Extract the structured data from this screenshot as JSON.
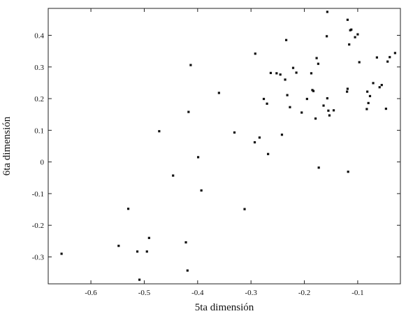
{
  "chart_data": {
    "type": "scatter",
    "title": "",
    "xlabel": "5ta dimensión",
    "ylabel": "6ta dimensión",
    "xlim": [
      -0.68,
      -0.02
    ],
    "ylim": [
      -0.385,
      0.485
    ],
    "xticks": [
      -0.6,
      -0.5,
      -0.4,
      -0.3,
      -0.2,
      -0.1
    ],
    "xtick_labels": [
      "-0.6",
      "-0.5",
      "-0.4",
      "-0.3",
      "-0.2",
      "-0.1"
    ],
    "yticks": [
      -0.3,
      -0.2,
      -0.1,
      0,
      0.1,
      0.2,
      0.3,
      0.4
    ],
    "ytick_labels": [
      "-0.3",
      "-0.2",
      "-0.1",
      "0",
      "0.1",
      "0.2",
      "0.3",
      "0.4"
    ],
    "grid": false,
    "marker_color": "#111111",
    "points": [
      {
        "x": -0.655,
        "y": -0.29
      },
      {
        "x": -0.548,
        "y": -0.265
      },
      {
        "x": -0.53,
        "y": -0.148
      },
      {
        "x": -0.513,
        "y": -0.283
      },
      {
        "x": -0.509,
        "y": -0.372
      },
      {
        "x": -0.495,
        "y": -0.283
      },
      {
        "x": -0.491,
        "y": -0.24
      },
      {
        "x": -0.472,
        "y": 0.097
      },
      {
        "x": -0.446,
        "y": -0.043
      },
      {
        "x": -0.422,
        "y": -0.254
      },
      {
        "x": -0.419,
        "y": -0.343
      },
      {
        "x": -0.417,
        "y": 0.158
      },
      {
        "x": -0.413,
        "y": 0.306
      },
      {
        "x": -0.399,
        "y": 0.015
      },
      {
        "x": -0.393,
        "y": -0.09
      },
      {
        "x": -0.36,
        "y": 0.218
      },
      {
        "x": -0.331,
        "y": 0.093
      },
      {
        "x": -0.312,
        "y": -0.149
      },
      {
        "x": -0.293,
        "y": 0.062
      },
      {
        "x": -0.292,
        "y": 0.342
      },
      {
        "x": -0.284,
        "y": 0.077
      },
      {
        "x": -0.276,
        "y": 0.199
      },
      {
        "x": -0.27,
        "y": 0.184
      },
      {
        "x": -0.268,
        "y": 0.025
      },
      {
        "x": -0.263,
        "y": 0.281
      },
      {
        "x": -0.252,
        "y": 0.28
      },
      {
        "x": -0.245,
        "y": 0.276
      },
      {
        "x": -0.242,
        "y": 0.086
      },
      {
        "x": -0.236,
        "y": 0.26
      },
      {
        "x": -0.234,
        "y": 0.385
      },
      {
        "x": -0.232,
        "y": 0.211
      },
      {
        "x": -0.227,
        "y": 0.173
      },
      {
        "x": -0.221,
        "y": 0.297
      },
      {
        "x": -0.215,
        "y": 0.282
      },
      {
        "x": -0.205,
        "y": 0.156
      },
      {
        "x": -0.195,
        "y": 0.199
      },
      {
        "x": -0.187,
        "y": 0.28
      },
      {
        "x": -0.185,
        "y": 0.227
      },
      {
        "x": -0.183,
        "y": 0.224
      },
      {
        "x": -0.179,
        "y": 0.137
      },
      {
        "x": -0.177,
        "y": 0.328
      },
      {
        "x": -0.174,
        "y": 0.31
      },
      {
        "x": -0.173,
        "y": -0.018
      },
      {
        "x": -0.164,
        "y": 0.178
      },
      {
        "x": -0.158,
        "y": 0.397
      },
      {
        "x": -0.157,
        "y": 0.201
      },
      {
        "x": -0.157,
        "y": 0.474
      },
      {
        "x": -0.155,
        "y": 0.162
      },
      {
        "x": -0.153,
        "y": 0.147
      },
      {
        "x": -0.145,
        "y": 0.163
      },
      {
        "x": -0.12,
        "y": 0.222
      },
      {
        "x": -0.119,
        "y": 0.449
      },
      {
        "x": -0.119,
        "y": 0.231
      },
      {
        "x": -0.118,
        "y": -0.031
      },
      {
        "x": -0.116,
        "y": 0.371
      },
      {
        "x": -0.114,
        "y": 0.416
      },
      {
        "x": -0.112,
        "y": 0.418
      },
      {
        "x": -0.105,
        "y": 0.394
      },
      {
        "x": -0.1,
        "y": 0.403
      },
      {
        "x": -0.097,
        "y": 0.315
      },
      {
        "x": -0.083,
        "y": 0.167
      },
      {
        "x": -0.082,
        "y": 0.222
      },
      {
        "x": -0.08,
        "y": 0.186
      },
      {
        "x": -0.077,
        "y": 0.208
      },
      {
        "x": -0.071,
        "y": 0.249
      },
      {
        "x": -0.064,
        "y": 0.33
      },
      {
        "x": -0.059,
        "y": 0.236
      },
      {
        "x": -0.055,
        "y": 0.243
      },
      {
        "x": -0.047,
        "y": 0.168
      },
      {
        "x": -0.044,
        "y": 0.317
      },
      {
        "x": -0.04,
        "y": 0.331
      },
      {
        "x": -0.03,
        "y": 0.344
      }
    ]
  }
}
